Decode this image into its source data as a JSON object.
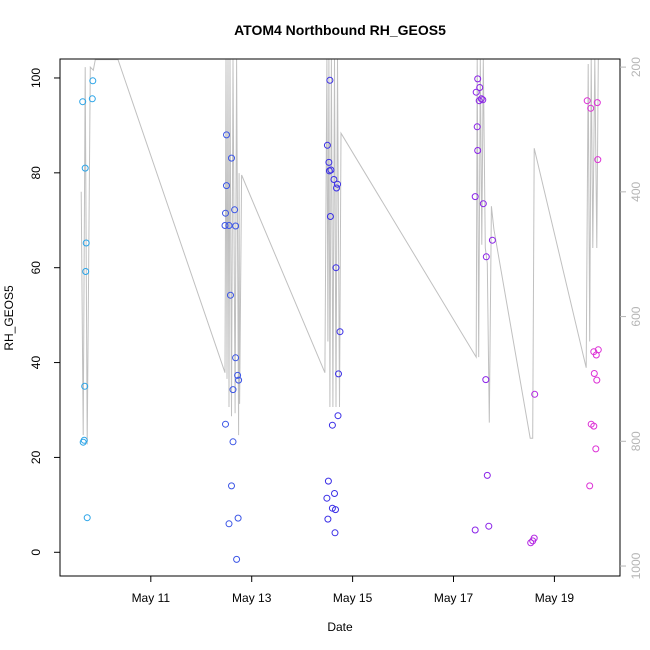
{
  "chart_data": {
    "type": "scatter",
    "title": "ATOM4 Northbound RH_GEOS5",
    "xlabel": "Date",
    "ylabel": "RH_GEOS5",
    "xlim": [
      9.2,
      20.3
    ],
    "ylim": [
      -5,
      104
    ],
    "x_ticks": [
      {
        "value": 11,
        "label": "May 11"
      },
      {
        "value": 13,
        "label": "May 13"
      },
      {
        "value": 15,
        "label": "May 15"
      },
      {
        "value": 17,
        "label": "May 17"
      },
      {
        "value": 19,
        "label": "May 19"
      }
    ],
    "y_ticks": [
      0,
      20,
      40,
      60,
      80,
      100
    ],
    "y2_ticks": [
      200,
      400,
      600,
      800,
      1000
    ],
    "y2lim": [
      1016,
      187
    ],
    "grid": false,
    "colors": {
      "axis": "#000000",
      "secondary_axis": "#b5b5b5",
      "altitude_line": "#c0c0c0"
    },
    "points": [
      {
        "x": 9.65,
        "y": 95,
        "c": "#2aa4e8"
      },
      {
        "x": 9.66,
        "y": 23.2,
        "c": "#2aa4e8"
      },
      {
        "x": 9.68,
        "y": 23.6,
        "c": "#2aa4e8"
      },
      {
        "x": 9.69,
        "y": 35,
        "c": "#2aa4e8"
      },
      {
        "x": 9.7,
        "y": 81,
        "c": "#2aa4e8"
      },
      {
        "x": 9.71,
        "y": 59.2,
        "c": "#2aa4e8"
      },
      {
        "x": 9.72,
        "y": 65.2,
        "c": "#2aa4e8"
      },
      {
        "x": 9.74,
        "y": 7.3,
        "c": "#2aa4e8"
      },
      {
        "x": 9.84,
        "y": 95.6,
        "c": "#2aa4e8"
      },
      {
        "x": 9.85,
        "y": 99.4,
        "c": "#2aa4e8"
      },
      {
        "x": 12.5,
        "y": 88,
        "c": "#3b55e6"
      },
      {
        "x": 12.48,
        "y": 71.5,
        "c": "#3b55e6"
      },
      {
        "x": 12.5,
        "y": 77.3,
        "c": "#3b55e6"
      },
      {
        "x": 12.47,
        "y": 68.9,
        "c": "#3b55e6"
      },
      {
        "x": 12.55,
        "y": 68.9,
        "c": "#3b55e6"
      },
      {
        "x": 12.48,
        "y": 27,
        "c": "#3b55e6"
      },
      {
        "x": 12.58,
        "y": 54.2,
        "c": "#3b55e6"
      },
      {
        "x": 12.6,
        "y": 83.1,
        "c": "#3b55e6"
      },
      {
        "x": 12.6,
        "y": 14,
        "c": "#3b55e6"
      },
      {
        "x": 12.63,
        "y": 34.3,
        "c": "#3b55e6"
      },
      {
        "x": 12.63,
        "y": 23.3,
        "c": "#3b55e6"
      },
      {
        "x": 12.66,
        "y": 72.2,
        "c": "#3b55e6"
      },
      {
        "x": 12.68,
        "y": 68.8,
        "c": "#3b55e6"
      },
      {
        "x": 12.68,
        "y": 41,
        "c": "#3b55e6"
      },
      {
        "x": 12.55,
        "y": 6,
        "c": "#3b55e6"
      },
      {
        "x": 12.72,
        "y": 37.3,
        "c": "#3b55e6"
      },
      {
        "x": 12.74,
        "y": 36.3,
        "c": "#3b55e6"
      },
      {
        "x": 12.73,
        "y": 7.2,
        "c": "#3b55e6"
      },
      {
        "x": 12.7,
        "y": -1.5,
        "c": "#3b55e6"
      },
      {
        "x": 14.5,
        "y": 85.8,
        "c": "#3a2ee6"
      },
      {
        "x": 14.55,
        "y": 99.5,
        "c": "#3a2ee6"
      },
      {
        "x": 14.53,
        "y": 82.2,
        "c": "#3a2ee6"
      },
      {
        "x": 14.54,
        "y": 80.4,
        "c": "#3a2ee6"
      },
      {
        "x": 14.57,
        "y": 80.6,
        "c": "#3a2ee6"
      },
      {
        "x": 14.63,
        "y": 78.6,
        "c": "#3a2ee6"
      },
      {
        "x": 14.68,
        "y": 76.8,
        "c": "#3a2ee6"
      },
      {
        "x": 14.7,
        "y": 77.6,
        "c": "#3a2ee6"
      },
      {
        "x": 14.56,
        "y": 70.8,
        "c": "#3a2ee6"
      },
      {
        "x": 14.67,
        "y": 60,
        "c": "#3a2ee6"
      },
      {
        "x": 14.75,
        "y": 46.5,
        "c": "#3a2ee6"
      },
      {
        "x": 14.72,
        "y": 37.6,
        "c": "#3a2ee6"
      },
      {
        "x": 14.71,
        "y": 28.8,
        "c": "#3a2ee6"
      },
      {
        "x": 14.6,
        "y": 26.8,
        "c": "#3a2ee6"
      },
      {
        "x": 14.52,
        "y": 15,
        "c": "#3a2ee6"
      },
      {
        "x": 14.64,
        "y": 12.4,
        "c": "#3a2ee6"
      },
      {
        "x": 14.49,
        "y": 11.4,
        "c": "#3a2ee6"
      },
      {
        "x": 14.6,
        "y": 9.3,
        "c": "#3a2ee6"
      },
      {
        "x": 14.66,
        "y": 9,
        "c": "#3a2ee6"
      },
      {
        "x": 14.51,
        "y": 7,
        "c": "#3a2ee6"
      },
      {
        "x": 14.65,
        "y": 4.1,
        "c": "#3a2ee6"
      },
      {
        "x": 17.45,
        "y": 97,
        "c": "#8a22e8"
      },
      {
        "x": 17.48,
        "y": 99.8,
        "c": "#8a22e8"
      },
      {
        "x": 17.51,
        "y": 95.2,
        "c": "#8a22e8"
      },
      {
        "x": 17.52,
        "y": 98,
        "c": "#8a22e8"
      },
      {
        "x": 17.55,
        "y": 95.6,
        "c": "#8a22e8"
      },
      {
        "x": 17.58,
        "y": 95.4,
        "c": "#8a22e8"
      },
      {
        "x": 17.47,
        "y": 89.7,
        "c": "#8a22e8"
      },
      {
        "x": 17.48,
        "y": 84.7,
        "c": "#8a22e8"
      },
      {
        "x": 17.43,
        "y": 75,
        "c": "#8a22e8"
      },
      {
        "x": 17.59,
        "y": 73.5,
        "c": "#8a22e8"
      },
      {
        "x": 17.77,
        "y": 65.8,
        "c": "#8a22e8"
      },
      {
        "x": 17.65,
        "y": 62.3,
        "c": "#8a22e8"
      },
      {
        "x": 17.64,
        "y": 36.4,
        "c": "#8a22e8"
      },
      {
        "x": 17.67,
        "y": 16.2,
        "c": "#8a22e8"
      },
      {
        "x": 17.7,
        "y": 5.5,
        "c": "#8a22e8"
      },
      {
        "x": 17.43,
        "y": 4.7,
        "c": "#8a22e8"
      },
      {
        "x": 18.53,
        "y": 2,
        "c": "#b326e3"
      },
      {
        "x": 18.57,
        "y": 2.4,
        "c": "#b326e3"
      },
      {
        "x": 18.6,
        "y": 3,
        "c": "#b326e3"
      },
      {
        "x": 18.61,
        "y": 33.3,
        "c": "#b326e3"
      },
      {
        "x": 19.65,
        "y": 95.2,
        "c": "#dd30d6"
      },
      {
        "x": 19.72,
        "y": 93.6,
        "c": "#dd30d6"
      },
      {
        "x": 19.85,
        "y": 94.8,
        "c": "#dd30d6"
      },
      {
        "x": 19.86,
        "y": 82.8,
        "c": "#dd30d6"
      },
      {
        "x": 19.78,
        "y": 42.3,
        "c": "#dd30d6"
      },
      {
        "x": 19.83,
        "y": 41.6,
        "c": "#dd30d6"
      },
      {
        "x": 19.87,
        "y": 42.7,
        "c": "#dd30d6"
      },
      {
        "x": 19.79,
        "y": 37.7,
        "c": "#dd30d6"
      },
      {
        "x": 19.84,
        "y": 36.3,
        "c": "#dd30d6"
      },
      {
        "x": 19.73,
        "y": 27,
        "c": "#dd30d6"
      },
      {
        "x": 19.78,
        "y": 26.6,
        "c": "#dd30d6"
      },
      {
        "x": 19.82,
        "y": 21.8,
        "c": "#dd30d6"
      },
      {
        "x": 19.7,
        "y": 14,
        "c": "#dd30d6"
      }
    ],
    "altitude_line": [
      [
        9.62,
        400
      ],
      [
        9.66,
        790
      ],
      [
        9.7,
        200
      ],
      [
        9.74,
        805
      ],
      [
        9.8,
        200
      ],
      [
        9.86,
        205
      ],
      [
        9.9,
        188
      ],
      [
        10.35,
        188
      ],
      [
        12.47,
        690
      ],
      [
        12.49,
        188
      ],
      [
        12.51,
        700
      ],
      [
        12.53,
        188
      ],
      [
        12.55,
        745
      ],
      [
        12.57,
        188
      ],
      [
        12.6,
        760
      ],
      [
        12.63,
        188
      ],
      [
        12.67,
        755
      ],
      [
        12.7,
        188
      ],
      [
        12.74,
        790
      ],
      [
        12.75,
        370
      ],
      [
        12.76,
        740
      ],
      [
        12.8,
        373
      ],
      [
        14.45,
        690
      ],
      [
        14.49,
        188
      ],
      [
        14.51,
        640
      ],
      [
        14.53,
        188
      ],
      [
        14.55,
        745
      ],
      [
        14.58,
        188
      ],
      [
        14.61,
        745
      ],
      [
        14.64,
        188
      ],
      [
        14.67,
        745
      ],
      [
        14.7,
        188
      ],
      [
        14.74,
        745
      ],
      [
        14.77,
        306
      ],
      [
        17.45,
        665
      ],
      [
        17.47,
        188
      ],
      [
        17.5,
        665
      ],
      [
        17.53,
        188
      ],
      [
        17.56,
        485
      ],
      [
        17.59,
        188
      ],
      [
        17.63,
        490
      ],
      [
        17.67,
        515
      ],
      [
        17.71,
        770
      ],
      [
        17.75,
        423
      ],
      [
        17.8,
        460
      ],
      [
        18.52,
        795
      ],
      [
        18.57,
        795
      ],
      [
        18.6,
        330
      ],
      [
        19.63,
        682
      ],
      [
        19.67,
        195
      ],
      [
        19.7,
        640
      ],
      [
        19.73,
        188
      ],
      [
        19.76,
        490
      ],
      [
        19.8,
        188
      ],
      [
        19.84,
        490
      ],
      [
        19.87,
        188
      ]
    ]
  }
}
